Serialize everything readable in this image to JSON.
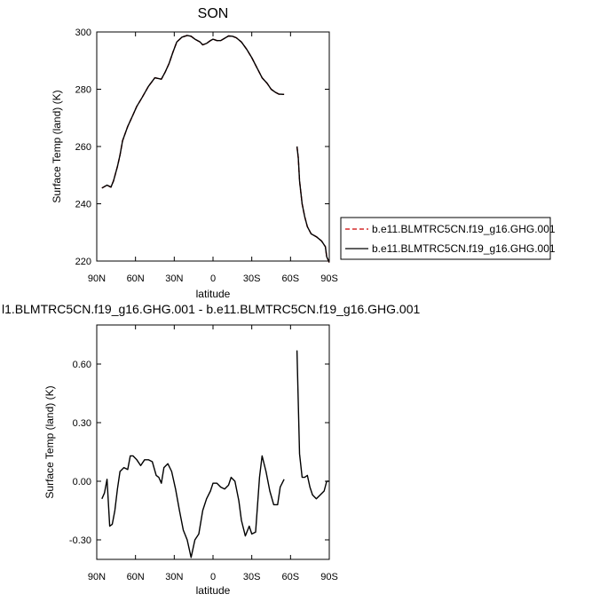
{
  "chart_data": [
    {
      "type": "line",
      "title": "SON",
      "xlabel": "latitude",
      "ylabel": "Surface Temp (land) (K)",
      "xlim": [
        90,
        -90
      ],
      "ylim": [
        220,
        300
      ],
      "xticks": [
        90,
        60,
        30,
        0,
        -30,
        -60,
        -90
      ],
      "xtick_labels": [
        "90N",
        "60N",
        "30N",
        "0",
        "30S",
        "60S",
        "90S"
      ],
      "yticks": [
        220,
        240,
        260,
        280,
        300
      ],
      "ytick_labels": [
        "220",
        "240",
        "260",
        "280",
        "300"
      ],
      "legend": {
        "position": "right",
        "entries": [
          {
            "label": "b.e11.BLMTRC5CN.f19_g16.GHG.001",
            "color": "#cc0000",
            "dash": "dashed"
          },
          {
            "label": "b.e11.BLMTRC5CN.f19_g16.GHG.001",
            "color": "#000000",
            "dash": "solid"
          }
        ]
      },
      "series": [
        {
          "name": "b.e11.BLMTRC5CN.f19_g16.GHG.001",
          "color": "#cc0000",
          "dash": "dashed",
          "segments": [
            {
              "x": [
                86,
                82,
                79,
                77,
                74,
                72,
                70,
                66,
                62,
                59,
                55,
                50,
                45,
                40,
                37,
                34,
                31,
                28,
                24,
                20,
                17,
                14,
                10,
                8,
                5,
                2,
                0,
                -3,
                -6,
                -9,
                -12,
                -15,
                -18,
                -22,
                -26,
                -30,
                -34,
                -38,
                -42,
                -45,
                -48,
                -51,
                -55
              ],
              "y": [
                245.5,
                246.5,
                245.8,
                248,
                253,
                257,
                262,
                267,
                271,
                274,
                277,
                281,
                284,
                283.5,
                286,
                289,
                293,
                296.5,
                298.2,
                298.8,
                298.5,
                297.5,
                296.5,
                295.5,
                296,
                297,
                297.5,
                297,
                297,
                297.8,
                298.6,
                298.5,
                298,
                296.5,
                294,
                291,
                287.5,
                284,
                282,
                280,
                279,
                278.3,
                278.2
              ]
            },
            {
              "x": [
                -65,
                -66,
                -67,
                -69,
                -71,
                -73,
                -76,
                -80,
                -84,
                -87,
                -88,
                -90
              ],
              "y": [
                260,
                256,
                248,
                240,
                235.5,
                232,
                229.5,
                228.5,
                227,
                225,
                221.5,
                219.5
              ]
            }
          ]
        },
        {
          "name": "b.e11.BLMTRC5CN.f19_g16.GHG.001",
          "color": "#000000",
          "dash": "solid",
          "segments": [
            {
              "x": [
                86,
                82,
                79,
                77,
                74,
                72,
                70,
                66,
                62,
                59,
                55,
                50,
                45,
                40,
                37,
                34,
                31,
                28,
                24,
                20,
                17,
                14,
                10,
                8,
                5,
                2,
                0,
                -3,
                -6,
                -9,
                -12,
                -15,
                -18,
                -22,
                -26,
                -30,
                -34,
                -38,
                -42,
                -45,
                -48,
                -51,
                -55
              ],
              "y": [
                245.5,
                246.5,
                245.8,
                248,
                253,
                257,
                262,
                267,
                271,
                274,
                277,
                281,
                284,
                283.5,
                286,
                289,
                293,
                296.5,
                298.2,
                298.8,
                298.5,
                297.5,
                296.5,
                295.5,
                296,
                297,
                297.5,
                297,
                297,
                297.8,
                298.6,
                298.5,
                298,
                296.5,
                294,
                291,
                287.5,
                284,
                282,
                280,
                279,
                278.3,
                278.2
              ]
            },
            {
              "x": [
                -65,
                -66,
                -67,
                -69,
                -71,
                -73,
                -76,
                -80,
                -84,
                -87,
                -88,
                -90
              ],
              "y": [
                260,
                256,
                248,
                240,
                235.5,
                232,
                229.5,
                228.5,
                227,
                225,
                221.5,
                219.5
              ]
            }
          ]
        }
      ]
    },
    {
      "type": "line",
      "title": "l1.BLMTRC5CN.f19_g16.GHG.001 - b.e11.BLMTRC5CN.f19_g16.GHG.001",
      "xlabel": "latitude",
      "ylabel": "Surface Temp (land) (K)",
      "xlim": [
        90,
        -90
      ],
      "ylim": [
        -0.4,
        0.8
      ],
      "xticks": [
        90,
        60,
        30,
        0,
        -30,
        -60,
        -90
      ],
      "xtick_labels": [
        "90N",
        "60N",
        "30N",
        "0",
        "30S",
        "60S",
        "90S"
      ],
      "yticks": [
        -0.3,
        0.0,
        0.3,
        0.6
      ],
      "ytick_labels": [
        "-0.30",
        "0.00",
        "0.30",
        "0.60"
      ],
      "series": [
        {
          "color": "#000000",
          "dash": "solid",
          "segments": [
            {
              "x": [
                86,
                84,
                82,
                80,
                78,
                76,
                74,
                72,
                69,
                66,
                64,
                62,
                59,
                56,
                53,
                50,
                47,
                44,
                42,
                40,
                38,
                35,
                32,
                29,
                26,
                23,
                20,
                17,
                14,
                11,
                8,
                5,
                2,
                0,
                -3,
                -6,
                -9,
                -12,
                -14,
                -17,
                -20,
                -22,
                -25,
                -28,
                -30,
                -33,
                -36,
                -38,
                -41,
                -44,
                -47,
                -50,
                -52,
                -55
              ],
              "y": [
                -0.09,
                -0.06,
                0.01,
                -0.23,
                -0.22,
                -0.15,
                -0.04,
                0.05,
                0.07,
                0.06,
                0.13,
                0.13,
                0.11,
                0.08,
                0.11,
                0.11,
                0.1,
                0.03,
                0.02,
                -0.01,
                0.07,
                0.09,
                0.05,
                -0.04,
                -0.15,
                -0.25,
                -0.3,
                -0.39,
                -0.3,
                -0.27,
                -0.15,
                -0.09,
                -0.05,
                -0.01,
                -0.01,
                -0.03,
                -0.04,
                -0.02,
                0.02,
                0.0,
                -0.1,
                -0.2,
                -0.28,
                -0.23,
                -0.27,
                -0.26,
                0.02,
                0.13,
                0.05,
                -0.05,
                -0.12,
                -0.12,
                -0.03,
                0.01
              ]
            },
            {
              "x": [
                -65,
                -67,
                -69,
                -71,
                -73,
                -75,
                -77,
                -80,
                -83,
                -86,
                -88,
                -90
              ],
              "y": [
                0.67,
                0.14,
                0.02,
                0.02,
                0.03,
                -0.03,
                -0.07,
                -0.09,
                -0.07,
                -0.05,
                0.0,
                0.0
              ]
            }
          ]
        }
      ]
    }
  ]
}
